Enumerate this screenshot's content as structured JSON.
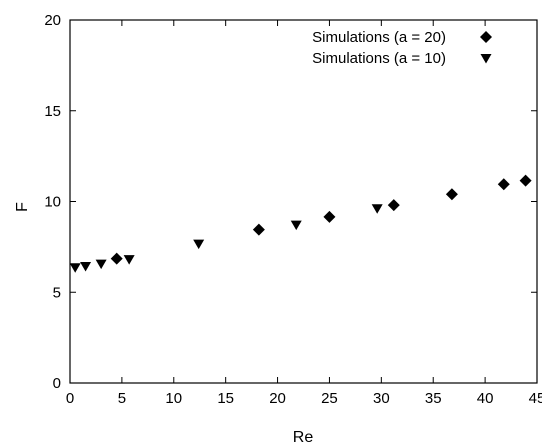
{
  "chart_data": {
    "type": "scatter",
    "xlabel": "Re",
    "ylabel": "F",
    "xlim": [
      0,
      45
    ],
    "ylim": [
      0,
      20
    ],
    "xticks": [
      0,
      5,
      10,
      15,
      20,
      25,
      30,
      35,
      40,
      45
    ],
    "yticks": [
      0,
      5,
      10,
      15,
      20
    ],
    "grid": false,
    "legend_position": "top-right",
    "series": [
      {
        "name": "Simulations (a = 20)",
        "marker": "diamond",
        "color": "#000000",
        "points": [
          {
            "x": 4.5,
            "y": 6.85
          },
          {
            "x": 18.2,
            "y": 8.45
          },
          {
            "x": 25.0,
            "y": 9.15
          },
          {
            "x": 31.2,
            "y": 9.8
          },
          {
            "x": 36.8,
            "y": 10.4
          },
          {
            "x": 41.8,
            "y": 10.95
          },
          {
            "x": 43.9,
            "y": 11.15
          }
        ]
      },
      {
        "name": "Simulations (a = 10)",
        "marker": "triangle-down",
        "color": "#000000",
        "points": [
          {
            "x": 0.5,
            "y": 6.35
          },
          {
            "x": 1.5,
            "y": 6.42
          },
          {
            "x": 3.0,
            "y": 6.55
          },
          {
            "x": 5.7,
            "y": 6.8
          },
          {
            "x": 12.4,
            "y": 7.65
          },
          {
            "x": 21.8,
            "y": 8.7
          },
          {
            "x": 29.6,
            "y": 9.6
          }
        ]
      }
    ]
  }
}
